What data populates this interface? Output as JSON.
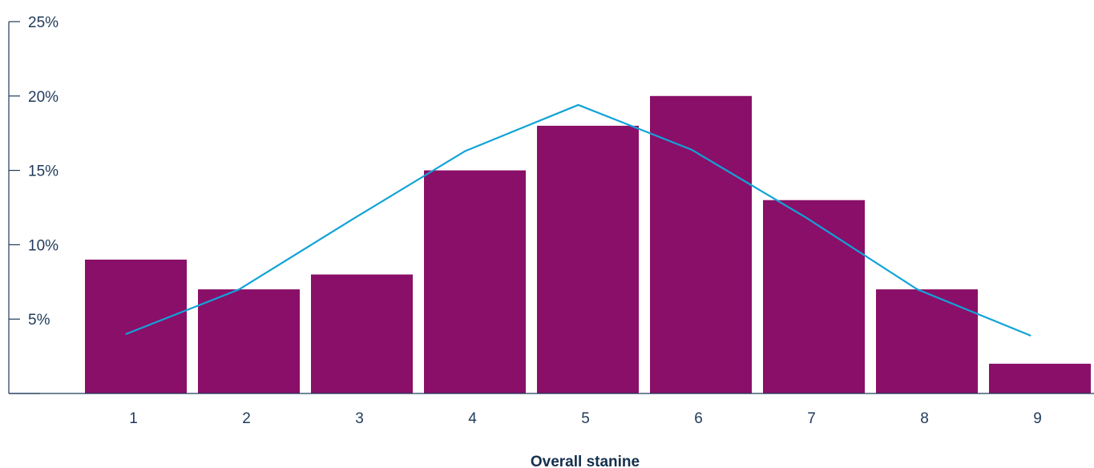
{
  "chart_data": {
    "type": "bar",
    "categories": [
      "1",
      "2",
      "3",
      "4",
      "5",
      "6",
      "7",
      "8",
      "9"
    ],
    "series": [
      {
        "values": [
          9,
          7,
          8,
          15,
          18,
          20,
          13,
          7,
          2
        ],
        "kind": "bar",
        "color": "#8a0f68"
      },
      {
        "values": [
          4,
          7,
          11.7,
          16.3,
          19.4,
          16.4,
          11.9,
          7,
          3.9
        ],
        "kind": "line",
        "color": "#12a3d8"
      }
    ],
    "y_ticks": [
      "5%",
      "10%",
      "15%",
      "20%",
      "25%"
    ],
    "ylim": [
      0,
      25
    ],
    "xlabel": "Overall stanine",
    "ylabel": "",
    "grid": false,
    "colors": {
      "bar": "#8a0f68",
      "line": "#12a3d8",
      "axis": "#1f3a5a",
      "text": "#14304d"
    }
  }
}
